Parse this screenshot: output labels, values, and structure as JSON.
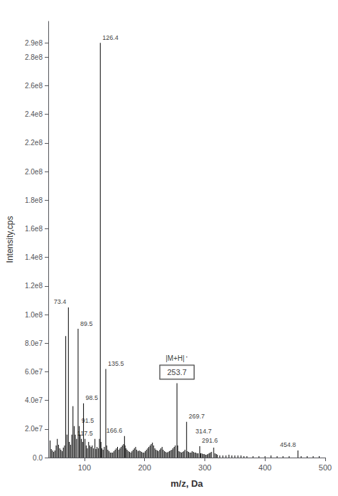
{
  "chart_data": {
    "type": "stem",
    "xlabel": "m/z, Da",
    "ylabel": "Intensity,cps",
    "color": "#000000",
    "grid": false,
    "xlim": [
      40,
      500
    ],
    "ylim": [
      0,
      305000000.0
    ],
    "xticks": [
      100,
      200,
      300,
      400,
      500
    ],
    "yticks": [
      {
        "value": 0,
        "label": "0.0"
      },
      {
        "value": 20000000.0,
        "label": "2.0e7"
      },
      {
        "value": 40000000.0,
        "label": "4.0e7"
      },
      {
        "value": 60000000.0,
        "label": "6.0e7"
      },
      {
        "value": 80000000.0,
        "label": "8.0e7"
      },
      {
        "value": 100000000.0,
        "label": "1.0e8"
      },
      {
        "value": 120000000.0,
        "label": "1.2e8"
      },
      {
        "value": 140000000.0,
        "label": "1.4e8"
      },
      {
        "value": 160000000.0,
        "label": "1.6e8"
      },
      {
        "value": 180000000.0,
        "label": "1.8e8"
      },
      {
        "value": 200000000.0,
        "label": "2.0e8"
      },
      {
        "value": 220000000.0,
        "label": "2.2e8"
      },
      {
        "value": 240000000.0,
        "label": "2.4e8"
      },
      {
        "value": 260000000.0,
        "label": "2.6e8"
      },
      {
        "value": 280000000.0,
        "label": "2.8e8"
      },
      {
        "value": 290000000.0,
        "label": "2.9e8"
      }
    ],
    "x": [
      43,
      45,
      47,
      49,
      51,
      53,
      55,
      57,
      59,
      61,
      63,
      65,
      67,
      69,
      71,
      73.4,
      75,
      77,
      79,
      81,
      83,
      85,
      87,
      89.5,
      91.5,
      93,
      95,
      97,
      98.5,
      101,
      103,
      105,
      107,
      109,
      111,
      113,
      115,
      117.5,
      119,
      121,
      123,
      125,
      126.4,
      127.5,
      129,
      131,
      133,
      135.5,
      137,
      139,
      141,
      143,
      145,
      147,
      149,
      151,
      153,
      155,
      157,
      159,
      161,
      163,
      165,
      166.6,
      167.5,
      169,
      171,
      173,
      175,
      177,
      179,
      181,
      183,
      185,
      187,
      189,
      191,
      193,
      195,
      197,
      199,
      201,
      203,
      205,
      207,
      209,
      211,
      213,
      215,
      217,
      219,
      221,
      223,
      225,
      227,
      229,
      231,
      233,
      235,
      237,
      239,
      241,
      243,
      245,
      247,
      249,
      251,
      253.7,
      255,
      257,
      259,
      261,
      263,
      265,
      267,
      269.7,
      271,
      273,
      275,
      277,
      279,
      281,
      283,
      285,
      287,
      289,
      291.6,
      293,
      295,
      297,
      299,
      301,
      303,
      305,
      307,
      309,
      311,
      314.7,
      317,
      319,
      321,
      325,
      330,
      335,
      340,
      345,
      350,
      355,
      360,
      365,
      370,
      380,
      390,
      400,
      410,
      420,
      430,
      440,
      454.8,
      460,
      470,
      480,
      490
    ],
    "values": [
      12000000.0,
      6000000.0,
      5000000.0,
      4000000.0,
      5000000.0,
      8500000.0,
      13000000.0,
      9000000.0,
      6500000.0,
      5500000.0,
      4500000.0,
      7000000.0,
      8500000.0,
      85000000.0,
      16000000.0,
      105000000.0,
      11000000.0,
      9000000.0,
      16000000.0,
      36000000.0,
      22000000.0,
      16000000.0,
      13000000.0,
      90000000.0,
      22000000.0,
      16000000.0,
      13000000.0,
      11000000.0,
      38000000.0,
      13000000.0,
      8500000.0,
      6500000.0,
      11000000.0,
      8500000.0,
      7500000.0,
      8500000.0,
      6500000.0,
      13000000.0,
      6000000.0,
      7500000.0,
      6500000.0,
      13000000.0,
      290000000.0,
      11000000.0,
      6500000.0,
      5500000.0,
      7500000.0,
      62000000.0,
      8500000.0,
      5500000.0,
      4500000.0,
      3500000.0,
      3500000.0,
      3500000.0,
      4500000.0,
      5500000.0,
      6500000.0,
      7500000.0,
      5500000.0,
      6500000.0,
      7500000.0,
      8500000.0,
      9500000.0,
      15000000.0,
      8500000.0,
      6500000.0,
      5500000.0,
      4500000.0,
      4000000.0,
      3500000.0,
      4500000.0,
      5500000.0,
      6500000.0,
      7500000.0,
      5500000.0,
      4500000.0,
      5000000.0,
      4500000.0,
      4000000.0,
      3500000.0,
      3500000.0,
      4500000.0,
      5500000.0,
      6500000.0,
      7500000.0,
      8500000.0,
      9500000.0,
      10500000.0,
      8500000.0,
      6500000.0,
      5500000.0,
      5000000.0,
      4500000.0,
      5500000.0,
      6500000.0,
      7500000.0,
      5500000.0,
      4500000.0,
      4000000.0,
      3500000.0,
      4000000.0,
      4500000.0,
      5000000.0,
      5500000.0,
      6500000.0,
      7500000.0,
      8500000.0,
      52000000.0,
      8500000.0,
      4500000.0,
      4000000.0,
      3500000.0,
      4000000.0,
      4500000.0,
      5500000.0,
      25000000.0,
      4500000.0,
      4000000.0,
      3500000.0,
      3500000.0,
      4500000.0,
      4000000.0,
      3500000.0,
      3500000.0,
      3000000.0,
      3000000.0,
      8000000.0,
      3000000.0,
      3000000.0,
      2500000.0,
      2500000.0,
      2000000.0,
      2000000.0,
      2500000.0,
      3000000.0,
      3500000.0,
      4000000.0,
      7000000.0,
      3000000.0,
      2500000.0,
      2000000.0,
      1500000.0,
      1500000.0,
      1500000.0,
      2000000.0,
      1500000.0,
      1500000.0,
      1500000.0,
      1500000.0,
      1000000.0,
      1000000.0,
      1000000.0,
      1000000.0,
      1000000.0,
      1500000.0,
      1000000.0,
      1000000.0,
      1000000.0,
      5000000.0,
      1000000.0,
      1000000.0,
      1000000.0,
      1000000.0
    ],
    "annotations": [
      {
        "text": "126.4",
        "x": 126.4,
        "y": 290000000.0,
        "align": "left"
      },
      {
        "text": "73.4",
        "x": 73.4,
        "y": 105000000.0,
        "align": "right"
      },
      {
        "text": "89.5",
        "x": 89.5,
        "y": 90000000.0,
        "align": "left"
      },
      {
        "text": "135.5",
        "x": 135.5,
        "y": 62000000.0,
        "align": "left"
      },
      {
        "text": "98.5",
        "x": 98.5,
        "y": 38000000.0,
        "align": "left"
      },
      {
        "text": "91.5",
        "x": 91.5,
        "y": 22000000.0,
        "align": "left"
      },
      {
        "text": "166.6",
        "x": 166.6,
        "y": 15000000.0,
        "align": "right"
      },
      {
        "text": "117.5",
        "x": 117.5,
        "y": 13000000.0,
        "align": "right"
      },
      {
        "text": "269.7",
        "x": 269.7,
        "y": 25000000.0,
        "align": "left"
      },
      {
        "text": "291.6",
        "x": 291.6,
        "y": 8000000.0,
        "align": "left"
      },
      {
        "text": "314.7",
        "x": 314.7,
        "y": 7000000.0,
        "align": "right"
      },
      {
        "text": "454.8",
        "x": 454.8,
        "y": 5000000.0,
        "align": "right"
      },
      {
        "text": "253.7",
        "x": 253.7,
        "y": 52000000.0,
        "boxed": true,
        "header": "|M+H|",
        "header_superscript": "·"
      }
    ]
  }
}
